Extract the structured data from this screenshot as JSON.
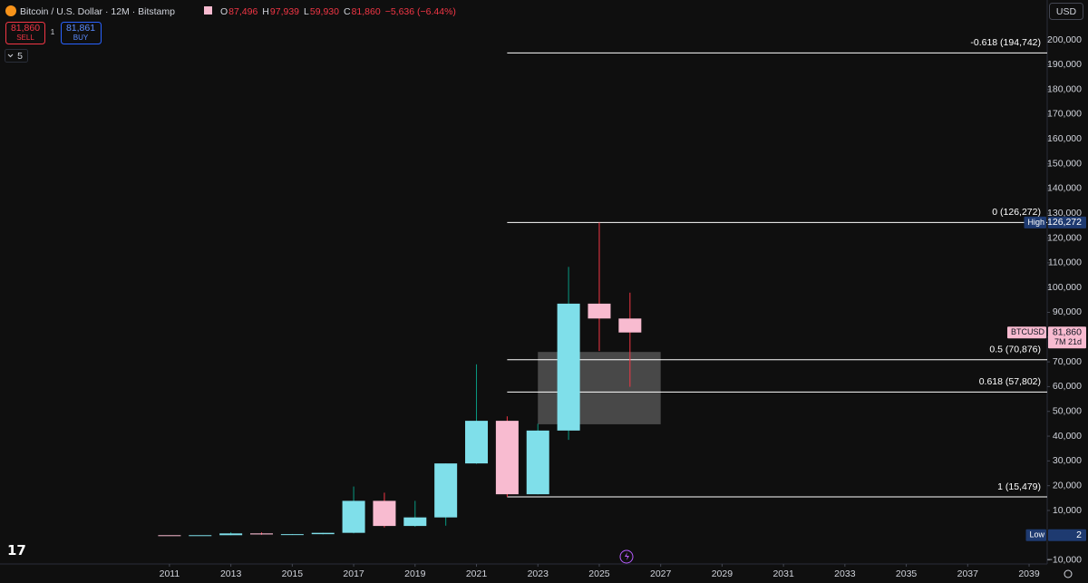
{
  "chart_data": {
    "type": "candlestick",
    "symbol": "Bitcoin / U.S. Dollar · 12M · Bitstamp",
    "ohlc_header": [
      {
        "key": "O",
        "value": "87,496"
      },
      {
        "key": "H",
        "value": "97,939"
      },
      {
        "key": "L",
        "value": "59,930"
      },
      {
        "key": "C",
        "value": "81,860"
      }
    ],
    "change": "−5,636 (−6.44%)",
    "trade": {
      "sell_price": "81,860",
      "sell": "SELL",
      "qty": "1",
      "buy_price": "81,861",
      "buy": "BUY"
    },
    "indicator_count": "5",
    "currency": "USD",
    "up_color": "#7fdfea",
    "down_color": "#f8bbd0",
    "up_wick": "#089981",
    "down_wick": "#f23645",
    "x": [
      2011,
      2012,
      2013,
      2014,
      2015,
      2016,
      2017,
      2018,
      2019,
      2020,
      2021,
      2022,
      2023,
      2024,
      2025,
      2026
    ],
    "open": [
      5,
      4.7,
      13.5,
      732,
      320,
      430,
      966,
      13880,
      3742,
      7196,
      28990,
      46200,
      16540,
      42265,
      93500,
      87496
    ],
    "high": [
      32,
      16.4,
      1163,
      1165,
      502,
      980,
      19666,
      17178,
      13880,
      29000,
      69000,
      48000,
      45000,
      108353,
      126272,
      97939
    ],
    "low": [
      2,
      4.1,
      13,
      172,
      152,
      350,
      752,
      3122,
      3391,
      3850,
      28800,
      15479,
      16500,
      38500,
      74400,
      59930
    ],
    "close": [
      4.7,
      13.5,
      732,
      320,
      430,
      966,
      13880,
      3742,
      7196,
      28990,
      46200,
      16540,
      42265,
      93500,
      87500,
      81860
    ],
    "xlim": [
      2005.48,
      2039.59
    ],
    "xticks": [
      2011,
      2013,
      2015,
      2017,
      2019,
      2021,
      2023,
      2025,
      2027,
      2029,
      2031,
      2033,
      2035,
      2037,
      2039
    ],
    "ylim": [
      -11600,
      216100
    ],
    "yticks": [
      {
        "value": -10000,
        "label": "−10,000"
      },
      {
        "value": 10000,
        "label": "10,000"
      },
      {
        "value": 20000,
        "label": "20,000"
      },
      {
        "value": 30000,
        "label": "30,000"
      },
      {
        "value": 40000,
        "label": "40,000"
      },
      {
        "value": 50000,
        "label": "50,000"
      },
      {
        "value": 60000,
        "label": "60,000"
      },
      {
        "value": 70000,
        "label": "70,000"
      },
      {
        "value": 80000,
        "label": "80,000"
      },
      {
        "value": 90000,
        "label": "90,000"
      },
      {
        "value": 100000,
        "label": "100,000"
      },
      {
        "value": 110000,
        "label": "110,000"
      },
      {
        "value": 120000,
        "label": "120,000"
      },
      {
        "value": 130000,
        "label": "130,000"
      },
      {
        "value": 140000,
        "label": "140,000"
      },
      {
        "value": 150000,
        "label": "150,000"
      },
      {
        "value": 160000,
        "label": "160,000"
      },
      {
        "value": 170000,
        "label": "170,000"
      },
      {
        "value": 180000,
        "label": "180,000"
      },
      {
        "value": 190000,
        "label": "190,000"
      },
      {
        "value": 200000,
        "label": "200,000"
      }
    ],
    "fib_start": 2022,
    "fib_levels": [
      {
        "price": 194742,
        "label": "-0.618 (194,742)"
      },
      {
        "price": 126272,
        "label": "0 (126,272)"
      },
      {
        "price": 70876,
        "label": "0.5 (70,876)"
      },
      {
        "price": 57802,
        "label": "0.618 (57,802)"
      },
      {
        "price": 15479,
        "label": "1 (15,479)"
      }
    ],
    "zone": {
      "from": 2023,
      "to": 2027,
      "top": 74000,
      "bottom": 44800
    },
    "price_tags": [
      {
        "title": "High",
        "value": 126272,
        "label": "126,272",
        "bg": "#1e3a70",
        "fg": "#ffffff"
      },
      {
        "title": "BTCUSD",
        "value": 81860,
        "label": "81,860",
        "countdown": "7M 21d",
        "bg": "#f8bbd0",
        "fg": "#131722"
      },
      {
        "title": "Low",
        "value": 2,
        "label": "2",
        "bg": "#1e3a70",
        "fg": "#ffffff"
      }
    ]
  }
}
